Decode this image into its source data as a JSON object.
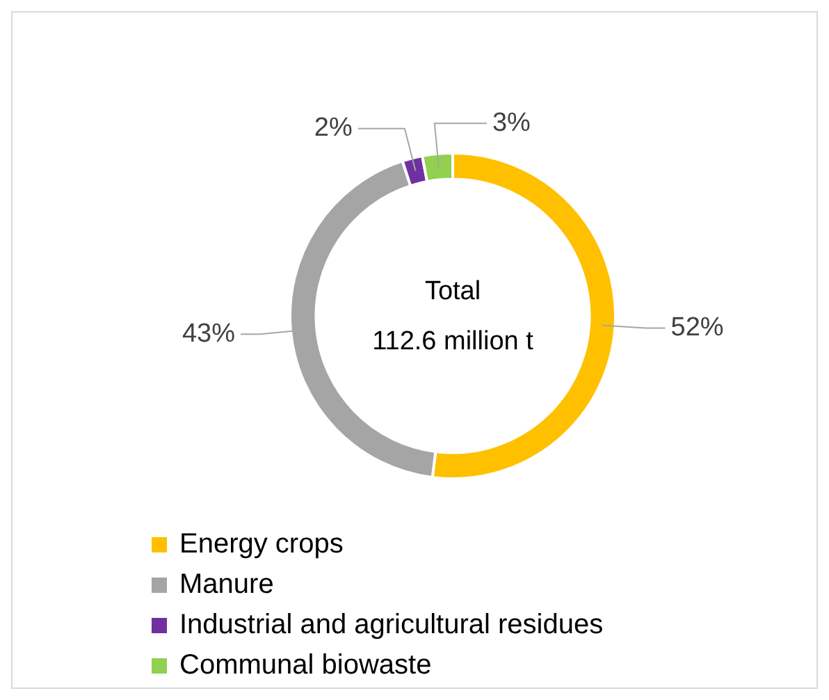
{
  "chart_data": {
    "type": "donut",
    "categories": [
      "Energy crops",
      "Manure",
      "Industrial and agricultural residues",
      "Communal biowaste"
    ],
    "values": [
      52,
      43,
      2,
      3
    ],
    "colors": [
      "#ffc000",
      "#a5a5a5",
      "#7030a0",
      "#92d050"
    ],
    "value_labels": [
      "52%",
      "43%",
      "2%",
      "3%"
    ],
    "annotations": [
      "Total",
      "112.6 million t"
    ],
    "legend": "bottom"
  }
}
